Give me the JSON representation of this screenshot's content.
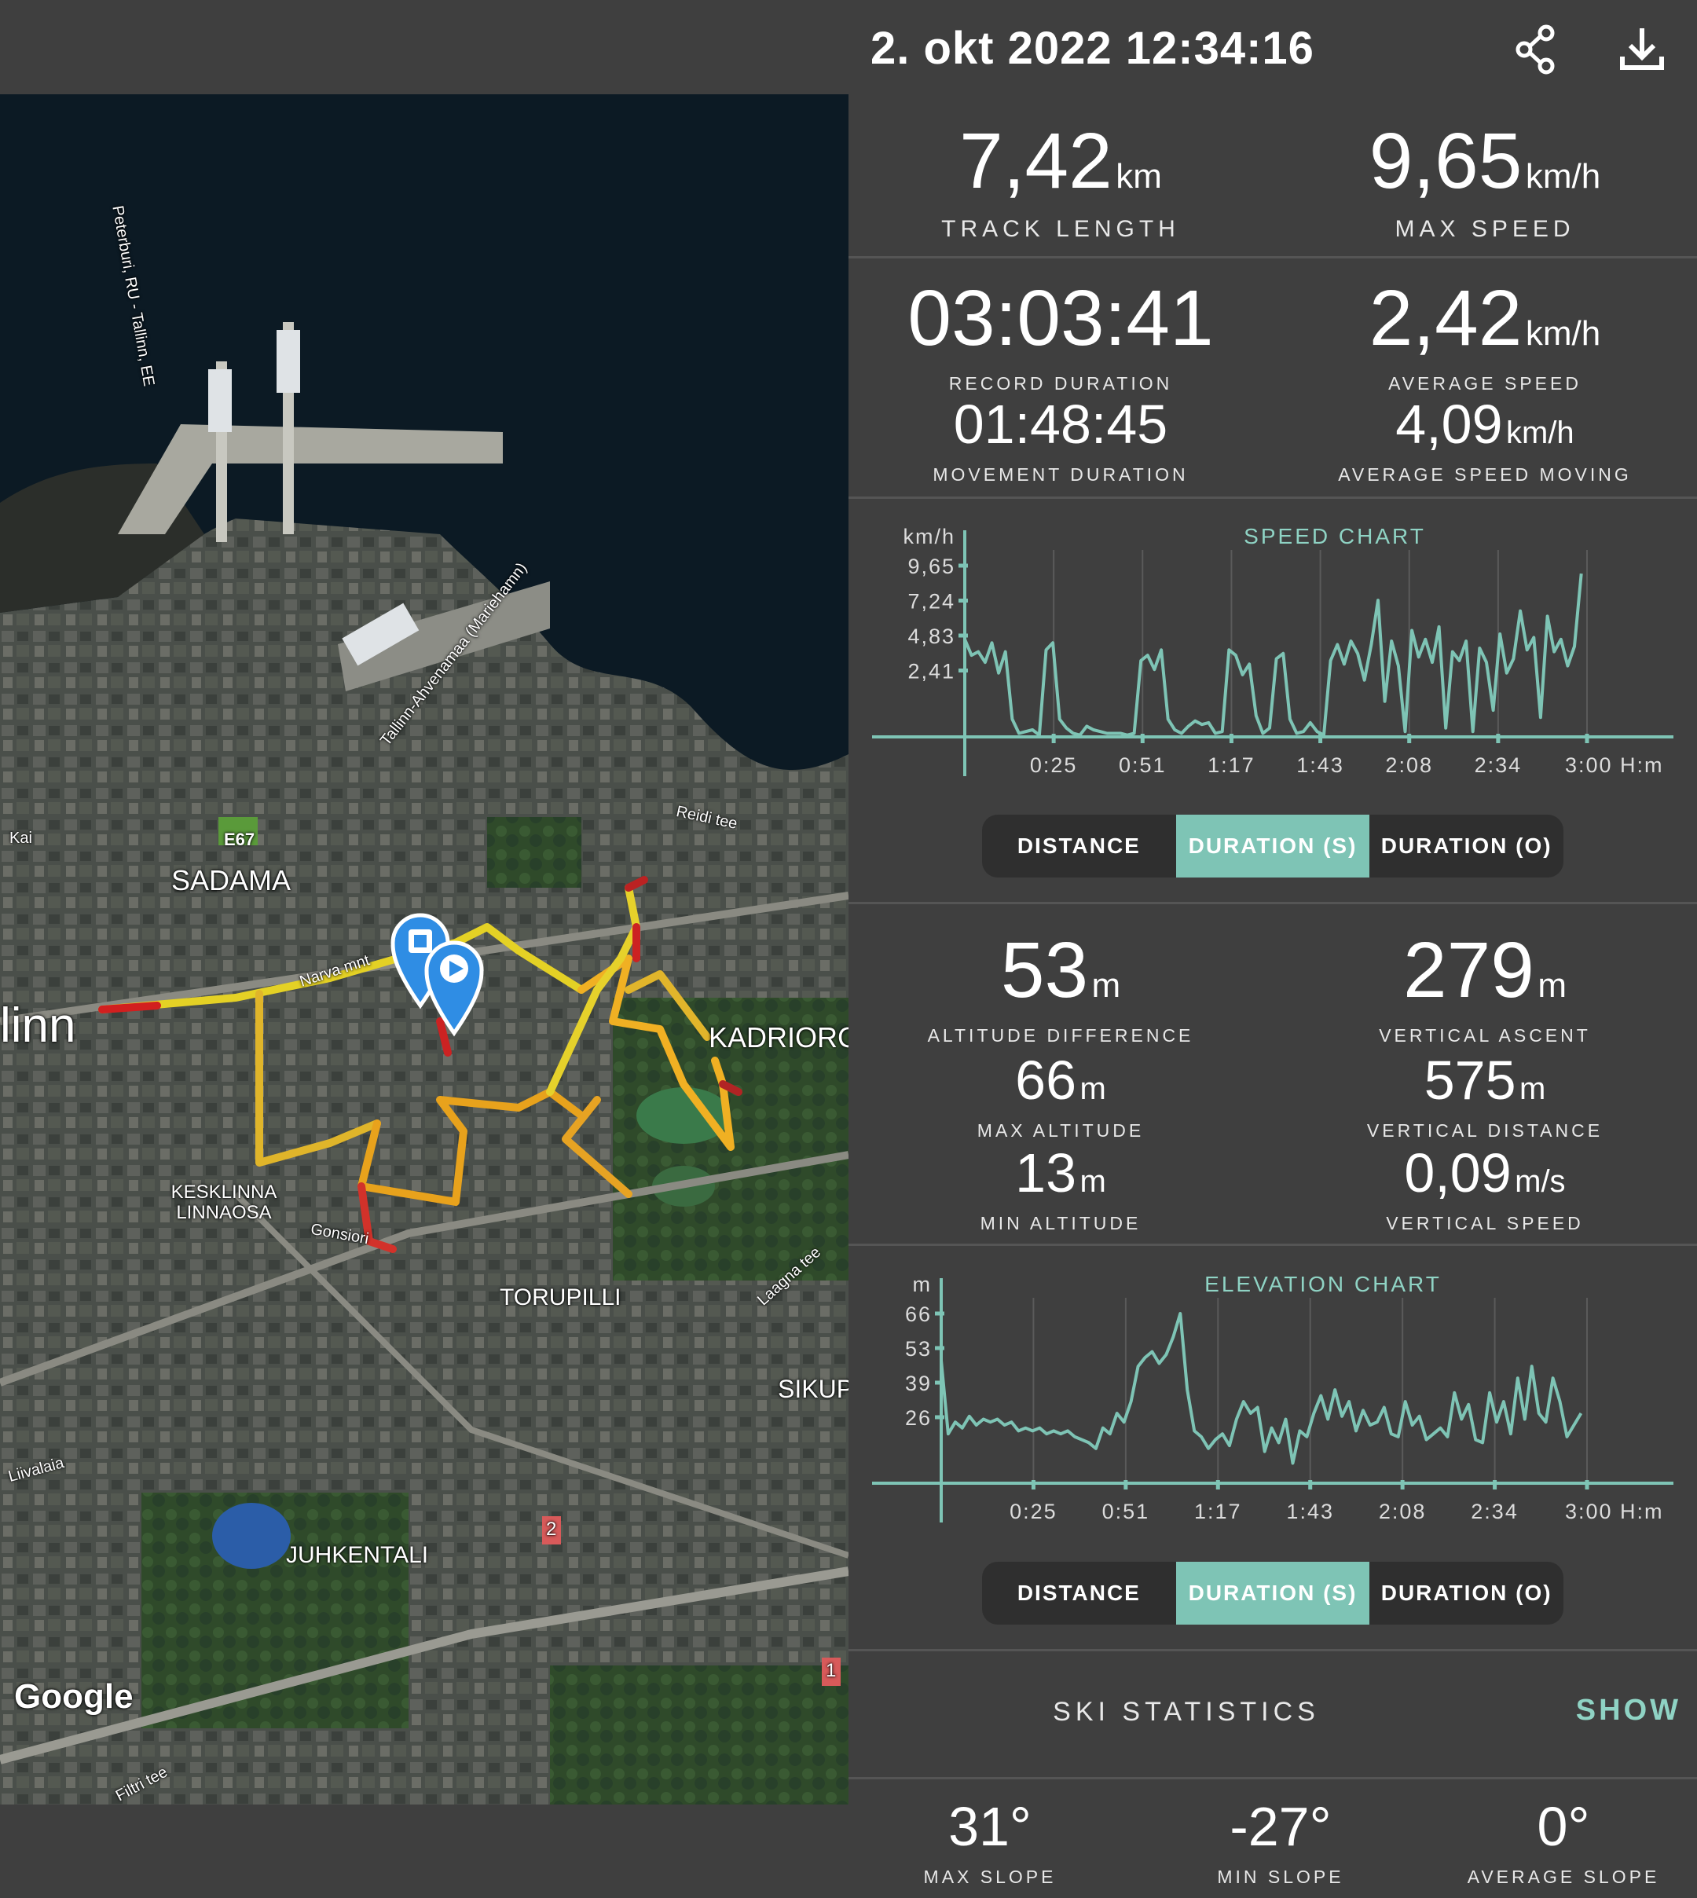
{
  "header": {
    "title": "2. okt 2022 12:34:16",
    "share_icon": "share-icon",
    "download_icon": "download-icon"
  },
  "stats": {
    "track_length": {
      "value": "7,42",
      "unit": "km",
      "label": "TRACK LENGTH"
    },
    "max_speed": {
      "value": "9,65",
      "unit": "km/h",
      "label": "MAX SPEED"
    },
    "record_duration": {
      "value": "03:03:41",
      "label": "RECORD DURATION"
    },
    "average_speed": {
      "value": "2,42",
      "unit": "km/h",
      "label": "AVERAGE SPEED"
    },
    "movement_duration": {
      "value": "01:48:45",
      "label": "MOVEMENT DURATION"
    },
    "average_speed_moving": {
      "value": "4,09",
      "unit": "km/h",
      "label": "AVERAGE SPEED MOVING"
    },
    "altitude_difference": {
      "value": "53",
      "unit": "m",
      "label": "ALTITUDE DIFFERENCE"
    },
    "vertical_ascent": {
      "value": "279",
      "unit": "m",
      "label": "VERTICAL ASCENT"
    },
    "max_altitude": {
      "value": "66",
      "unit": "m",
      "label": "MAX ALTITUDE"
    },
    "vertical_distance": {
      "value": "575",
      "unit": "m",
      "label": "VERTICAL DISTANCE"
    },
    "min_altitude": {
      "value": "13",
      "unit": "m",
      "label": "MIN ALTITUDE"
    },
    "vertical_speed": {
      "value": "0,09",
      "unit": "m/s",
      "label": "VERTICAL SPEED"
    }
  },
  "segmented": {
    "distance": "DISTANCE",
    "duration_s": "DURATION (S)",
    "duration_o": "DURATION (O)",
    "selected": "DURATION (S)"
  },
  "ski": {
    "label": "SKI STATISTICS",
    "action": "SHOW"
  },
  "slopes": {
    "max": {
      "value": "31°",
      "label": "MAX SLOPE"
    },
    "min": {
      "value": "-27°",
      "label": "MIN SLOPE"
    },
    "avg": {
      "value": "0°",
      "label": "AVERAGE SLOPE"
    }
  },
  "map": {
    "labels": [
      "SADAMA",
      "KADRIORG",
      "KESKLINNA LINNAOSA",
      "TORUPILLI",
      "JUHKENTALI",
      "SIKUP",
      "linn",
      "Google"
    ],
    "road_labels": [
      "Peterburi, RU - Tallinn, EE",
      "Tallinn-Ahvenamaa (Mariehamn)",
      "Reidi tee",
      "Narva mnt",
      "Gonsiori",
      "Laagna tee",
      "Liivalaia",
      "Filtri tee",
      "Kai"
    ],
    "road_badges": [
      "E67",
      "2",
      "1"
    ],
    "start_icon": "play-marker-icon",
    "end_icon": "stop-marker-icon"
  },
  "chart_data": [
    {
      "type": "line",
      "title": "SPEED CHART",
      "ylabel": "km/h",
      "xunit": "H:m",
      "yticks": [
        "9,65",
        "7,24",
        "4,83",
        "2,41"
      ],
      "xticks": [
        "0:25",
        "0:51",
        "1:17",
        "1:43",
        "2:08",
        "2:34",
        "3:00"
      ],
      "ylim": [
        0,
        9.65
      ],
      "xlim": [
        0,
        183.7
      ],
      "color": "#7ec4b5",
      "x": [
        0,
        2,
        4,
        6,
        8,
        10,
        12,
        14,
        16,
        18,
        20,
        22,
        24,
        26,
        28,
        30,
        32,
        34,
        36,
        38,
        40,
        42,
        44,
        46,
        48,
        50,
        52,
        54,
        56,
        58,
        60,
        62,
        64,
        66,
        68,
        70,
        72,
        74,
        76,
        78,
        80,
        82,
        84,
        86,
        88,
        90,
        92,
        94,
        96,
        98,
        100,
        102,
        104,
        106,
        108,
        110,
        112,
        114,
        116,
        118,
        120,
        122,
        124,
        126,
        128,
        130,
        132,
        134,
        136,
        138,
        140,
        142,
        144,
        146,
        148,
        150,
        152,
        154,
        156,
        158,
        160,
        162,
        164,
        166,
        168,
        170,
        172,
        174,
        176,
        178,
        180,
        182
      ],
      "values": [
        5.5,
        4.6,
        4.8,
        4.2,
        5.3,
        3.6,
        4.8,
        1.0,
        0.2,
        0.3,
        0.4,
        0.1,
        4.9,
        5.3,
        1.0,
        0.5,
        0.2,
        0.1,
        0.6,
        0.4,
        0.3,
        0.2,
        0.2,
        0.2,
        0.1,
        0.2,
        4.3,
        4.6,
        3.8,
        4.9,
        1.0,
        0.4,
        0.2,
        0.6,
        0.9,
        0.7,
        0.8,
        0.2,
        0.3,
        4.9,
        4.6,
        3.5,
        4.1,
        1.2,
        0.2,
        0.5,
        4.4,
        4.7,
        1.0,
        0.2,
        0.3,
        0.8,
        0.3,
        0.1,
        4.3,
        5.2,
        4.1,
        5.4,
        4.7,
        3.2,
        5.2,
        7.7,
        2.0,
        5.4,
        4.0,
        0.3,
        6.0,
        4.5,
        5.5,
        4.2,
        6.2,
        0.5,
        4.8,
        4.3,
        5.4,
        0.3,
        5.0,
        4.2,
        1.5,
        5.8,
        3.6,
        4.4,
        7.1,
        4.9,
        5.6,
        1.1,
        6.8,
        4.8,
        5.5,
        4.0,
        5.1,
        9.2
      ]
    },
    {
      "type": "line",
      "title": "ELEVATION CHART",
      "ylabel": "m",
      "xunit": "H:m",
      "yticks": [
        "66",
        "53",
        "39",
        "26"
      ],
      "xticks": [
        "0:25",
        "0:51",
        "1:17",
        "1:43",
        "2:08",
        "2:34",
        "3:00"
      ],
      "ylim": [
        13,
        66
      ],
      "xlim": [
        0,
        183.7
      ],
      "color": "#7ec4b5",
      "x": [
        0,
        2,
        4,
        6,
        8,
        10,
        12,
        14,
        16,
        18,
        20,
        22,
        24,
        26,
        28,
        30,
        32,
        34,
        36,
        38,
        40,
        42,
        44,
        46,
        48,
        50,
        52,
        54,
        56,
        58,
        60,
        62,
        64,
        66,
        68,
        70,
        72,
        74,
        76,
        78,
        80,
        82,
        84,
        86,
        88,
        90,
        92,
        94,
        96,
        98,
        100,
        102,
        104,
        106,
        108,
        110,
        112,
        114,
        116,
        118,
        120,
        122,
        124,
        126,
        128,
        130,
        132,
        134,
        136,
        138,
        140,
        142,
        144,
        146,
        148,
        150,
        152,
        154,
        156,
        158,
        160,
        162,
        164,
        166,
        168,
        170,
        172,
        174,
        176,
        178,
        180,
        182
      ],
      "values": [
        50,
        25,
        29,
        27,
        31,
        28,
        30,
        29,
        30,
        28,
        29,
        26,
        27,
        26,
        27,
        25,
        26,
        25,
        26,
        24,
        23,
        22,
        20,
        27,
        25,
        32,
        29,
        36,
        48,
        51,
        53,
        49,
        52,
        58,
        66,
        40,
        26,
        24,
        20,
        23,
        25,
        21,
        30,
        36,
        32,
        34,
        19,
        27,
        22,
        30,
        15,
        26,
        24,
        32,
        38,
        30,
        40,
        31,
        36,
        26,
        33,
        28,
        29,
        34,
        25,
        24,
        36,
        28,
        31,
        23,
        25,
        27,
        24,
        39,
        30,
        35,
        23,
        22,
        39,
        29,
        36,
        25,
        44,
        30,
        48,
        32,
        29,
        44,
        36,
        24,
        28,
        32
      ]
    }
  ]
}
